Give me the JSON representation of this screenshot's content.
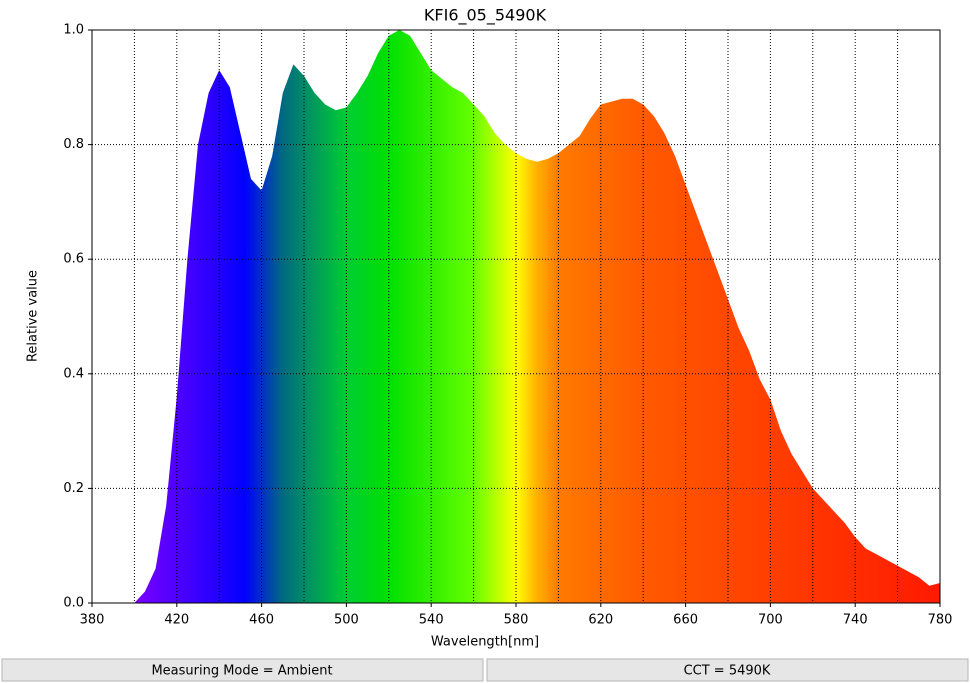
{
  "chart_data": {
    "type": "area",
    "title": "KFI6_05_5490K",
    "xlabel": "Wavelength[nm]",
    "ylabel": "Relative value",
    "x": [
      400,
      405,
      410,
      415,
      420,
      425,
      430,
      435,
      440,
      445,
      450,
      455,
      460,
      465,
      470,
      475,
      480,
      485,
      490,
      495,
      500,
      505,
      510,
      515,
      520,
      525,
      530,
      535,
      540,
      545,
      550,
      555,
      560,
      565,
      570,
      575,
      580,
      585,
      590,
      595,
      600,
      605,
      610,
      615,
      620,
      625,
      630,
      635,
      640,
      645,
      650,
      655,
      660,
      665,
      670,
      675,
      680,
      685,
      690,
      695,
      700,
      705,
      710,
      715,
      720,
      725,
      730,
      735,
      740,
      745,
      750,
      755,
      760,
      765,
      770,
      775,
      780
    ],
    "values": [
      0,
      0.02,
      0.06,
      0.17,
      0.36,
      0.6,
      0.8,
      0.89,
      0.93,
      0.9,
      0.82,
      0.74,
      0.72,
      0.78,
      0.89,
      0.94,
      0.92,
      0.89,
      0.87,
      0.86,
      0.865,
      0.89,
      0.92,
      0.96,
      0.99,
      1.0,
      0.99,
      0.96,
      0.93,
      0.915,
      0.9,
      0.89,
      0.87,
      0.85,
      0.82,
      0.8,
      0.785,
      0.775,
      0.77,
      0.775,
      0.785,
      0.8,
      0.815,
      0.845,
      0.87,
      0.875,
      0.88,
      0.88,
      0.87,
      0.85,
      0.82,
      0.78,
      0.73,
      0.68,
      0.63,
      0.58,
      0.53,
      0.48,
      0.44,
      0.39,
      0.355,
      0.3,
      0.26,
      0.23,
      0.2,
      0.18,
      0.16,
      0.14,
      0.115,
      0.095,
      0.085,
      0.075,
      0.065,
      0.055,
      0.045,
      0.03,
      0.035
    ],
    "fill_gradient": [
      {
        "x": 400,
        "color": "#7a00ff"
      },
      {
        "x": 440,
        "color": "#2200ff"
      },
      {
        "x": 452,
        "color": "#0000ff"
      },
      {
        "x": 470,
        "color": "#006a80"
      },
      {
        "x": 500,
        "color": "#00cc33"
      },
      {
        "x": 520,
        "color": "#00e000"
      },
      {
        "x": 560,
        "color": "#66ff00"
      },
      {
        "x": 580,
        "color": "#ffff00"
      },
      {
        "x": 590,
        "color": "#ffb000"
      },
      {
        "x": 600,
        "color": "#ff7a00"
      },
      {
        "x": 640,
        "color": "#ff5a00"
      },
      {
        "x": 780,
        "color": "#ff1a00"
      }
    ],
    "xlim": [
      380,
      780
    ],
    "xticks": [
      380,
      420,
      460,
      500,
      540,
      580,
      620,
      660,
      700,
      740,
      780
    ],
    "xgrid": [
      400,
      420,
      440,
      460,
      480,
      500,
      520,
      540,
      560,
      580,
      600,
      620,
      640,
      660,
      680,
      700,
      720,
      740,
      760
    ],
    "ylim": [
      0,
      1
    ],
    "yticks": [
      {
        "value": 0,
        "label": "0.0"
      },
      0.2,
      0.4,
      0.6,
      0.8,
      {
        "value": 1,
        "label": "1.0"
      }
    ],
    "ygrid": [
      0.2,
      0.4,
      0.6,
      0.8
    ],
    "grid": true
  },
  "footer": [
    "Measuring Mode = Ambient",
    "CCT = 5490K"
  ]
}
